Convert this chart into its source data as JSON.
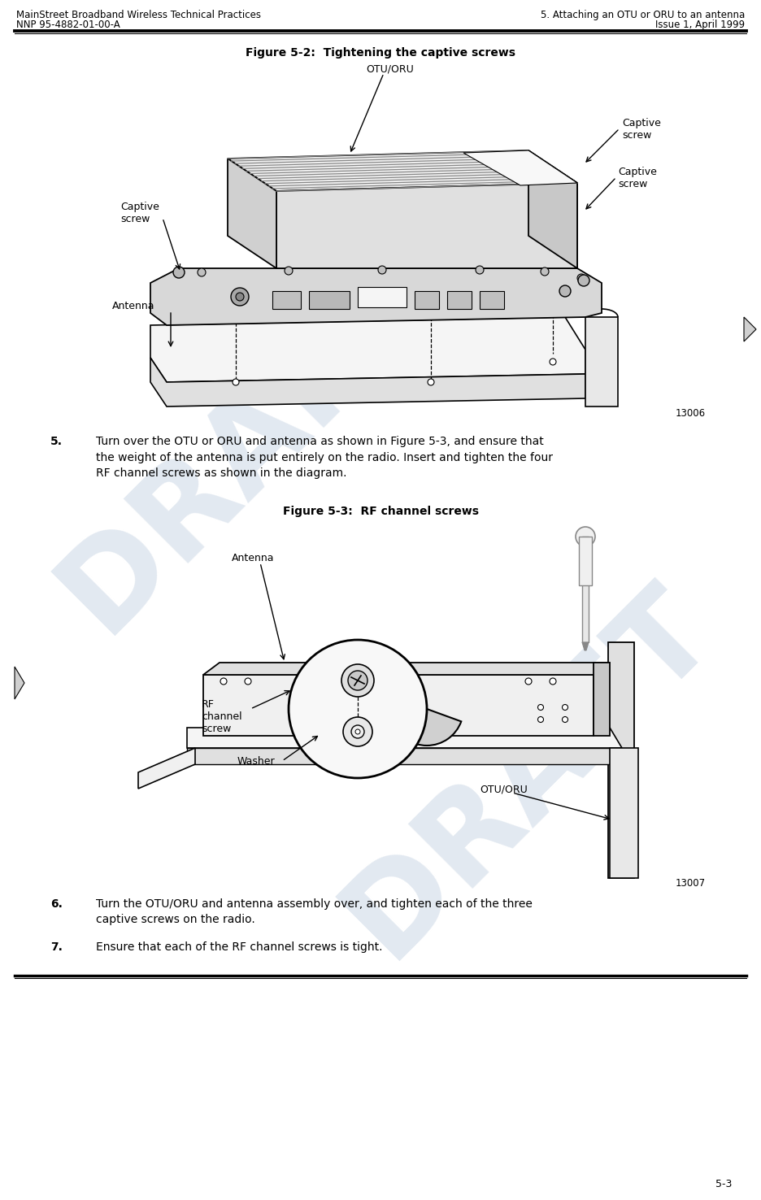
{
  "bg_color": "#ffffff",
  "header_left_line1": "MainStreet Broadband Wireless Technical Practices",
  "header_left_line2": "NNP 95-4882-01-00-A",
  "header_right_line1": "5. Attaching an OTU or ORU to an antenna",
  "header_right_line2": "Issue 1, April 1999",
  "fig1_title": "Figure 5-2:  Tightening the captive screws",
  "fig2_title": "Figure 5-3:  RF channel screws",
  "fig1_num": "13006",
  "fig2_num": "13007",
  "step5_num": "5.",
  "step5_text": "Turn over the OTU or ORU and antenna as shown in Figure 5-3, and ensure that\nthe weight of the antenna is put entirely on the radio. Insert and tighten the four\nRF channel screws as shown in the diagram.",
  "step6_num": "6.",
  "step6_text": "Turn the OTU/ORU and antenna assembly over, and tighten each of the three\ncaptive screws on the radio.",
  "step7_num": "7.",
  "step7_text": "Ensure that each of the RF channel screws is tight.",
  "page_num": "5-3",
  "draft_color": "#c0cfe0",
  "label_fontsize": 9,
  "body_fontsize": 10,
  "header_fontsize": 8.5,
  "fig_title_fontsize": 10
}
